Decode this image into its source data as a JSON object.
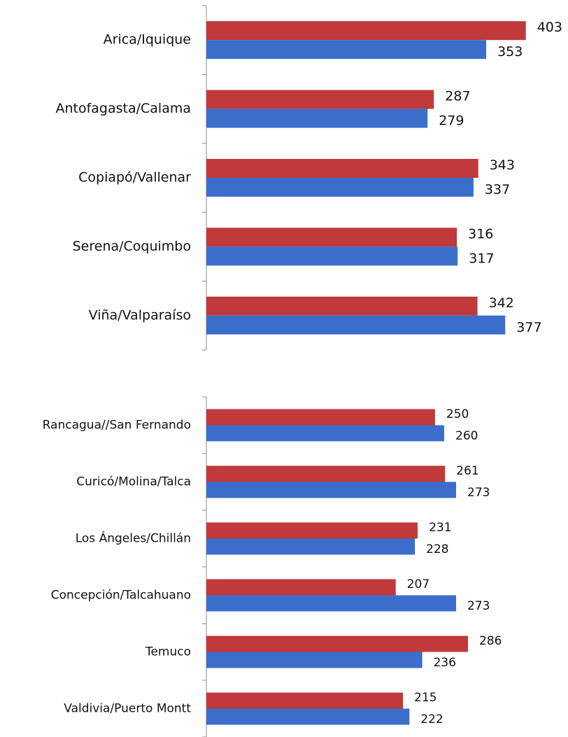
{
  "chart_data": [
    {
      "type": "bar",
      "orientation": "horizontal",
      "categories": [
        "Arica/Iquique",
        "Antofagasta/Calama",
        "Copiapó/Vallenar",
        "Serena/Coquimbo",
        "Viña/Valparaíso"
      ],
      "series": [
        {
          "color": "#c0393b",
          "values": [
            403,
            287,
            343,
            316,
            342
          ]
        },
        {
          "color": "#3b6ecb",
          "values": [
            353,
            279,
            337,
            317,
            377
          ]
        }
      ],
      "xlim": [
        0,
        450
      ]
    },
    {
      "type": "bar",
      "orientation": "horizontal",
      "categories": [
        "Rancagua//San Fernando",
        "Curicó/Molina/Talca",
        "Los Ángeles/Chillán",
        "Concepción/Talcahuano",
        "Temuco",
        "Valdivia/Puerto Montt"
      ],
      "series": [
        {
          "color": "#c0393b",
          "values": [
            250,
            261,
            231,
            207,
            286,
            215
          ]
        },
        {
          "color": "#3b6ecb",
          "values": [
            260,
            273,
            228,
            273,
            236,
            222
          ]
        }
      ],
      "xlim": [
        0,
        390
      ]
    }
  ]
}
